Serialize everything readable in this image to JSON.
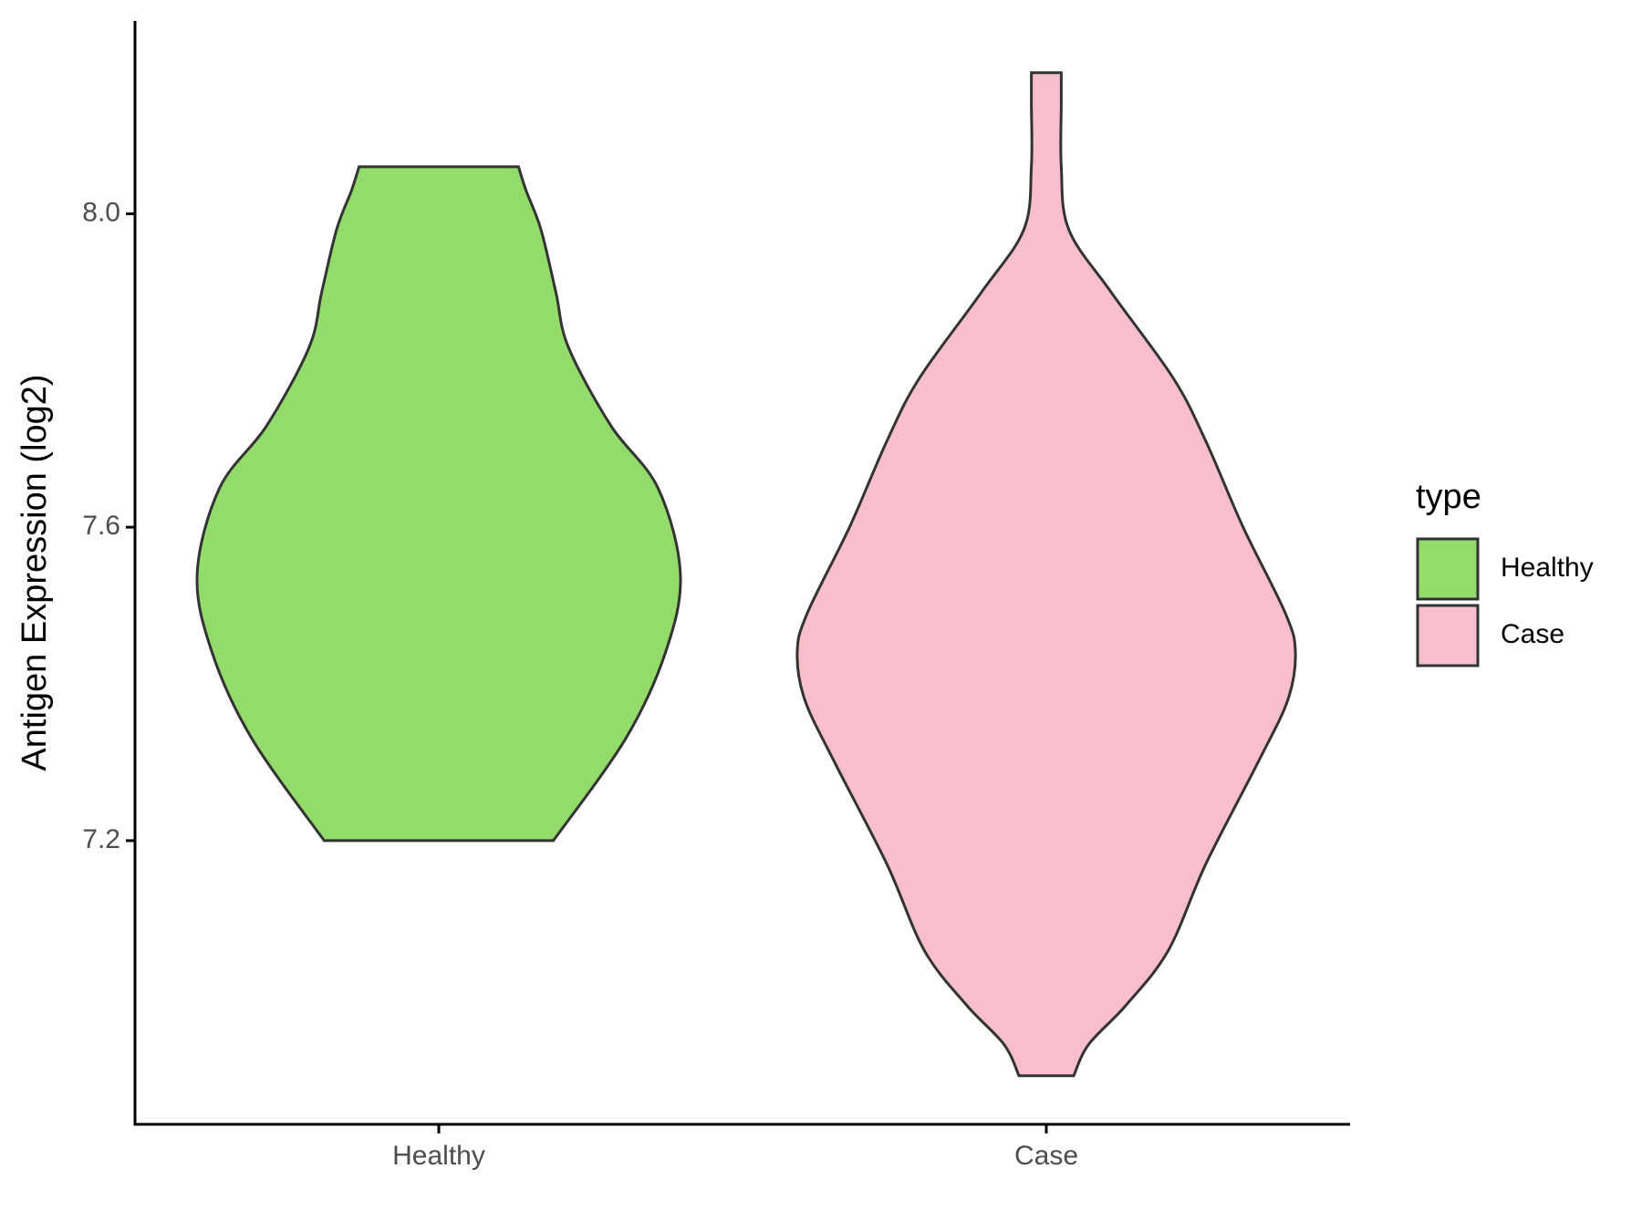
{
  "chart_data": {
    "type": "violin",
    "y_label": "Antigen Expression (log2)",
    "categories": [
      "Healthy",
      "Case"
    ],
    "legend_title": "type",
    "legend": "right",
    "ylim": [
      6.838,
      8.246
    ],
    "yticks": [
      7.2,
      7.6,
      {
        "value": 8,
        "label": "8.0"
      }
    ],
    "series": [
      {
        "name": "Healthy",
        "color": "#93dc6b",
        "y": [
          7.2,
          7.33,
          7.44,
          7.54,
          7.65,
          7.73,
          7.83,
          7.9,
          7.98,
          8.03,
          8.06
        ],
        "density": [
          0.46,
          0.75,
          0.91,
          0.97,
          0.88,
          0.69,
          0.52,
          0.47,
          0.41,
          0.35,
          0.32
        ]
      },
      {
        "name": "Case",
        "color": "#f7bfcb",
        "y": [
          6.9,
          6.94,
          6.99,
          7.06,
          7.17,
          7.3,
          7.38,
          7.44,
          7.49,
          7.6,
          7.71,
          7.79,
          7.9,
          7.98,
          8.06,
          8.14,
          8.18
        ],
        "density": [
          0.11,
          0.17,
          0.32,
          0.49,
          0.64,
          0.85,
          0.97,
          1.0,
          0.96,
          0.79,
          0.64,
          0.51,
          0.26,
          0.09,
          0.06,
          0.06,
          0.06
        ]
      }
    ]
  }
}
